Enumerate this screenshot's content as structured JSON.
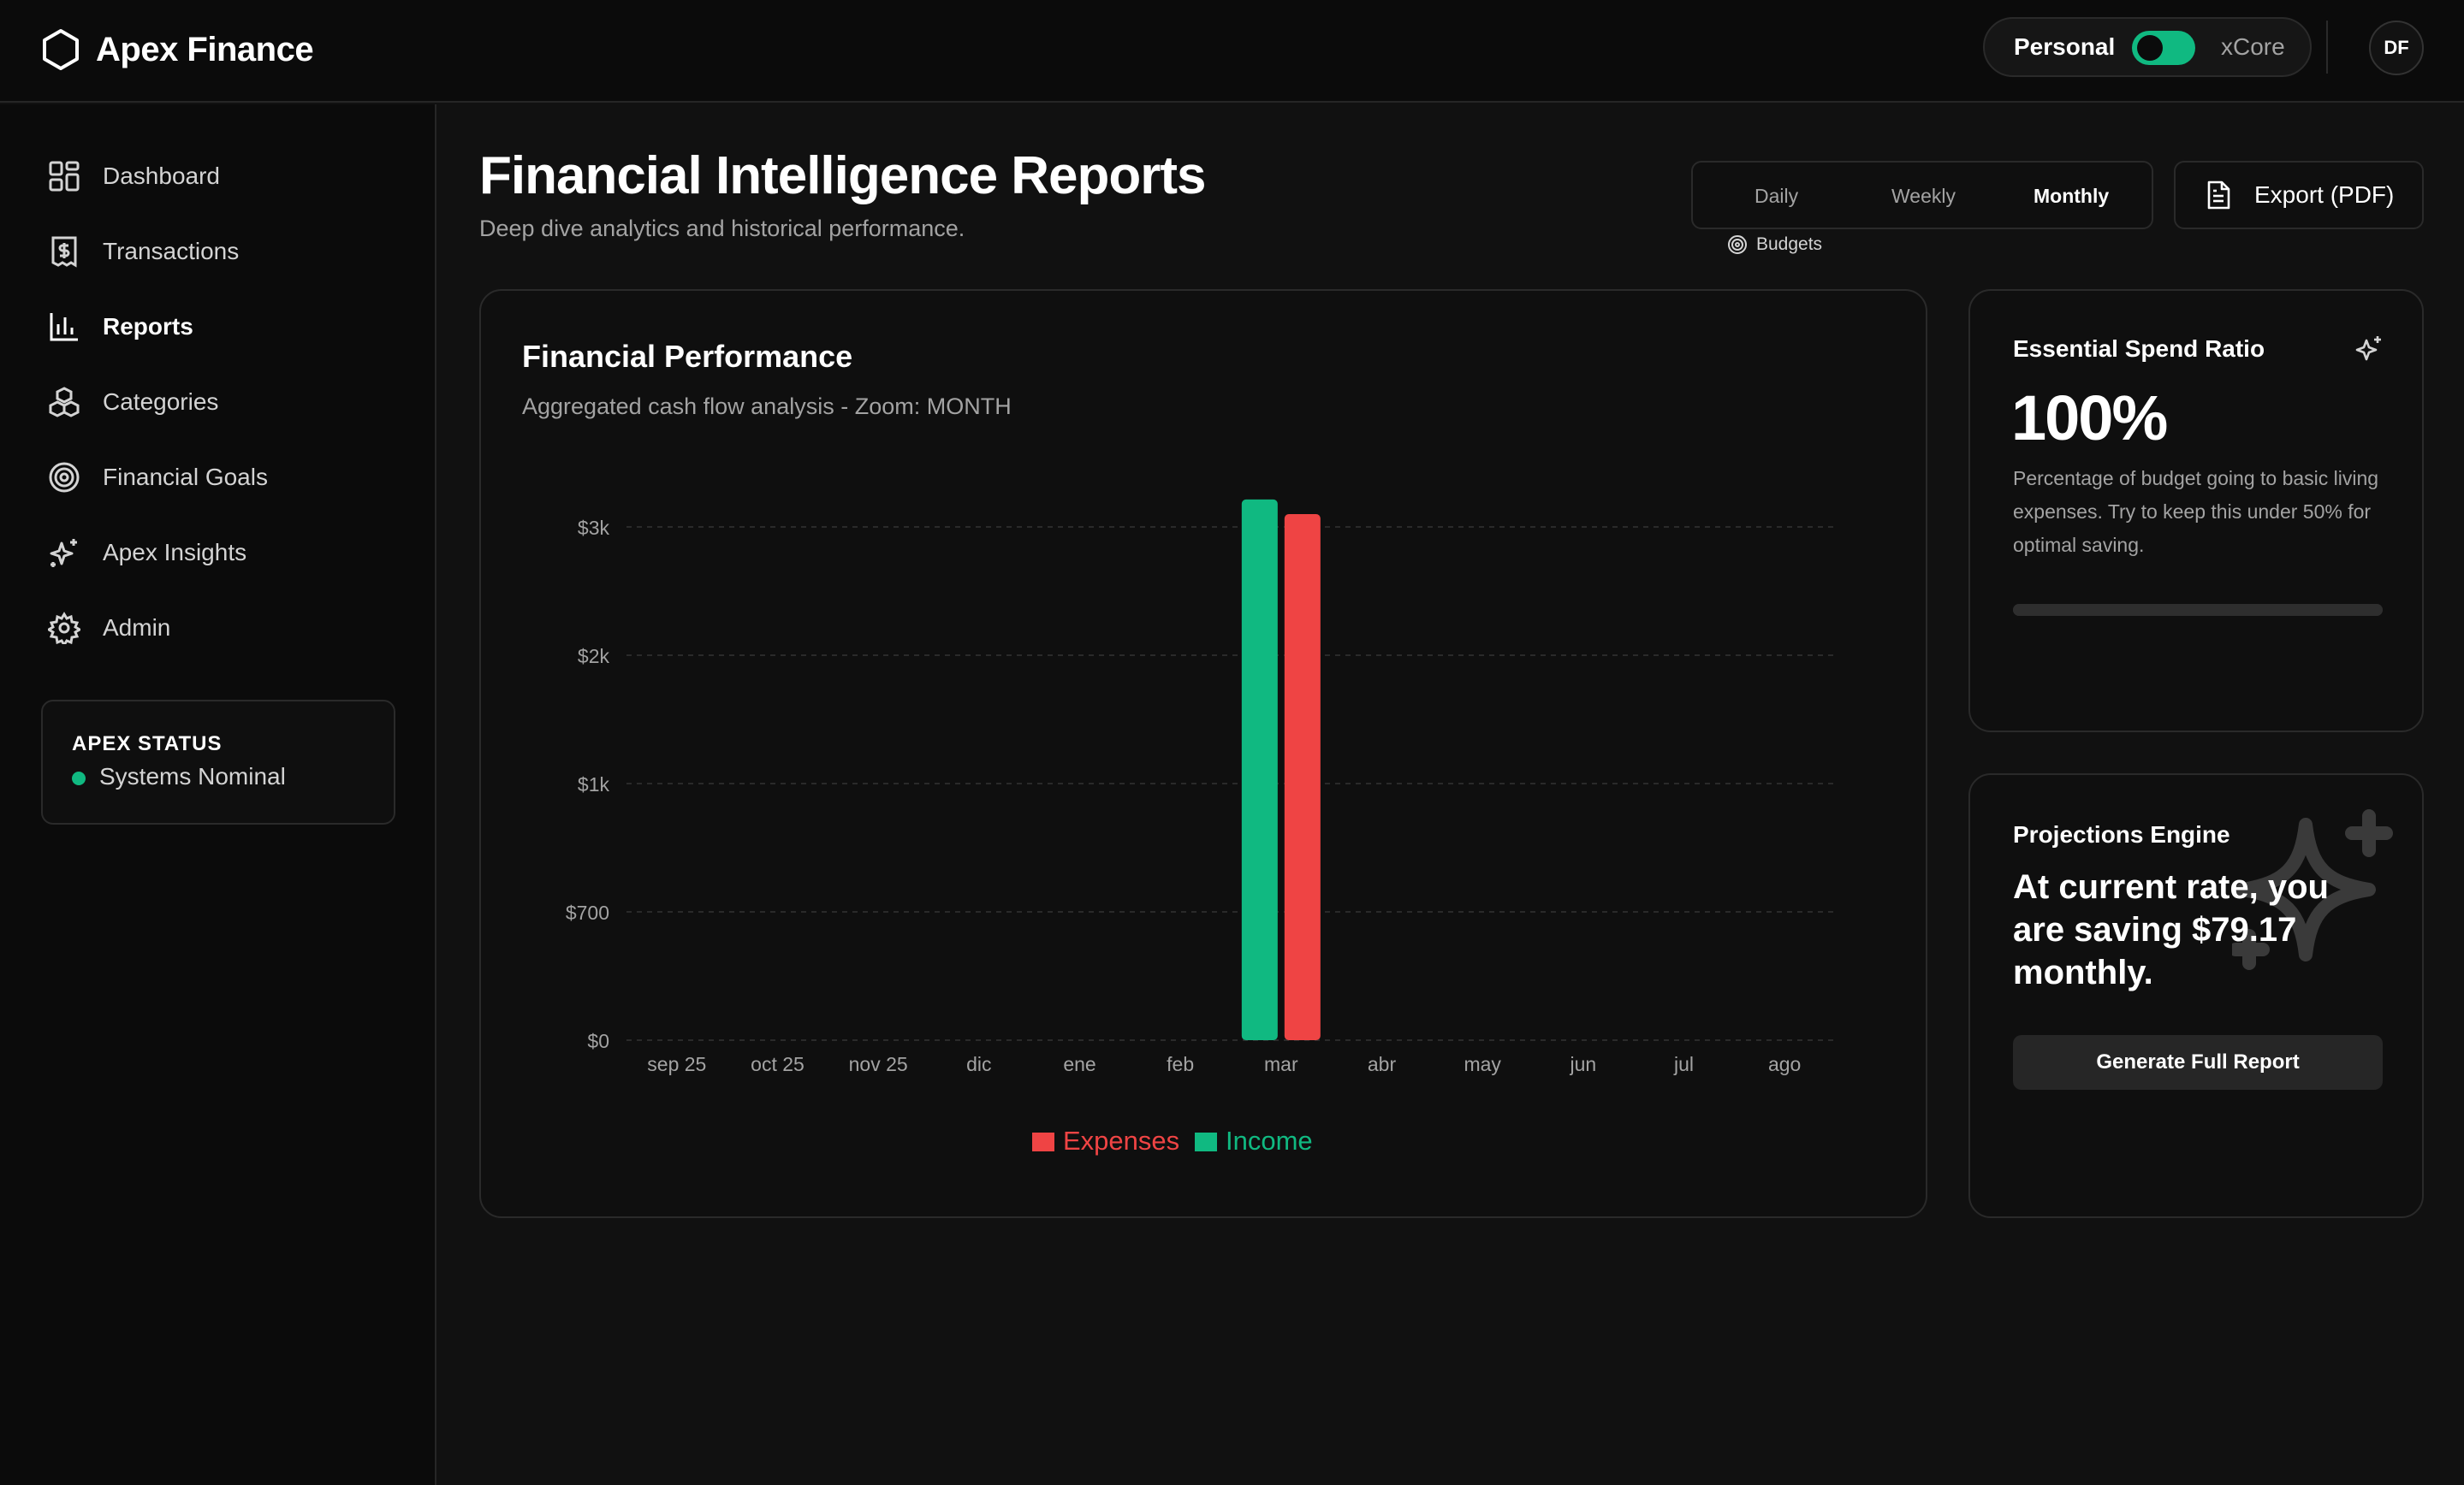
{
  "header": {
    "brand_name": "Apex Finance",
    "brand_icon": "hexagon-icon",
    "workspace_left": "Personal",
    "workspace_right": "xCore",
    "avatar_initials": "DF"
  },
  "sidebar": {
    "items": [
      {
        "label": "Dashboard",
        "icon": "grid-icon",
        "active": false
      },
      {
        "label": "Transactions",
        "icon": "receipt-dollar-icon",
        "active": false
      },
      {
        "label": "Reports",
        "icon": "bar-chart-icon",
        "active": true
      },
      {
        "label": "Categories",
        "icon": "boxes-icon",
        "active": false
      },
      {
        "label": "Financial Goals",
        "icon": "target-icon",
        "active": false
      },
      {
        "label": "Apex Insights",
        "icon": "sparkles-icon",
        "active": false
      },
      {
        "label": "Admin",
        "icon": "gear-icon",
        "active": false
      }
    ],
    "status": {
      "title": "APEX STATUS",
      "text": "Systems Nominal",
      "color": "#10b981"
    }
  },
  "main": {
    "title": "Financial Intelligence Reports",
    "subtitle": "Deep dive analytics and historical performance.",
    "range_tabs": [
      {
        "label": "Daily",
        "active": false
      },
      {
        "label": "Weekly",
        "active": false
      },
      {
        "label": "Monthly",
        "active": true
      }
    ],
    "budgets_label": "Budgets",
    "export_label": "Export (PDF)"
  },
  "chart_card": {
    "title": "Financial Performance",
    "subtitle": "Aggregated cash flow analysis - Zoom: MONTH"
  },
  "chart_data": {
    "type": "bar",
    "categories": [
      "sep 25",
      "oct 25",
      "nov 25",
      "dic",
      "ene",
      "feb",
      "mar",
      "abr",
      "may",
      "jun",
      "jul",
      "ago"
    ],
    "series": [
      {
        "name": "Income",
        "color": "#10b981",
        "values": [
          0,
          0,
          0,
          0,
          0,
          0,
          2950,
          0,
          0,
          0,
          0,
          0
        ]
      },
      {
        "name": "Expenses",
        "color": "#ef4444",
        "values": [
          0,
          0,
          0,
          0,
          0,
          0,
          2870,
          0,
          0,
          0,
          0,
          0
        ]
      }
    ],
    "y_ticks": [
      {
        "value": 0,
        "label": "$0"
      },
      {
        "value": 700,
        "label": "$700"
      },
      {
        "value": 1400,
        "label": "$1k"
      },
      {
        "value": 2100,
        "label": "$2k"
      },
      {
        "value": 2800,
        "label": "$3k"
      }
    ],
    "ylim": [
      0,
      2800
    ],
    "grid": true,
    "legend": [
      {
        "name": "Expenses",
        "color": "#ef4444"
      },
      {
        "name": "Income",
        "color": "#10b981"
      }
    ],
    "legend_position": "bottom-center"
  },
  "ratio_card": {
    "title": "Essential Spend Ratio",
    "icon": "sparkles-icon",
    "value": "100%",
    "fraction": 1.0,
    "description": "Percentage of budget going to basic living expenses. Try to keep this under 50% for optimal saving."
  },
  "projection_card": {
    "title": "Projections Engine",
    "icon": "sparkles-icon",
    "text": "At current rate, you are saving $79.17 monthly.",
    "button_label": "Generate Full Report"
  }
}
